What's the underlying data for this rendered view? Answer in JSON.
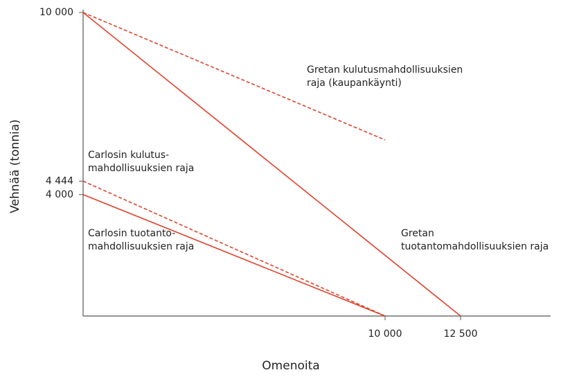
{
  "chart_data": {
    "type": "line",
    "x_label": "Omenoita",
    "y_label": "Vehnää (tonnia)",
    "xlim": [
      0,
      15500
    ],
    "ylim": [
      0,
      10000
    ],
    "xticks": [
      {
        "value": 10000,
        "label": "10 000"
      },
      {
        "value": 12500,
        "label": "12 500"
      }
    ],
    "yticks": [
      {
        "value": 4000,
        "label": "4 000"
      },
      {
        "value": 4444,
        "label": "4 444"
      },
      {
        "value": 10000,
        "label": "10 000"
      }
    ],
    "series": [
      {
        "color": "#e0402a",
        "linestyle": "dashed",
        "x": [
          0,
          10000
        ],
        "values": [
          10000,
          5800
        ]
      },
      {
        "color": "#e0402a",
        "linestyle": "solid",
        "x": [
          0,
          12500
        ],
        "values": [
          10000,
          0
        ]
      },
      {
        "color": "#e0402a",
        "linestyle": "dashed",
        "x": [
          0,
          10000
        ],
        "values": [
          4444,
          0
        ]
      },
      {
        "color": "#e0402a",
        "linestyle": "solid",
        "x": [
          0,
          10000
        ],
        "values": [
          4000,
          0
        ]
      }
    ],
    "annotations": [
      {
        "lines": [
          "Gretan kulutusmahdollisuuksien",
          "raja (kaupankäynti)"
        ]
      },
      {
        "lines": [
          "Gretan",
          "tuotantomahdollisuuksien raja"
        ]
      },
      {
        "lines": [
          "Carlosin kulutus-",
          "mahdollisuuksien raja"
        ]
      },
      {
        "lines": [
          "Carlosin tuotanto-",
          "mahdollisuuksien raja"
        ]
      }
    ]
  }
}
